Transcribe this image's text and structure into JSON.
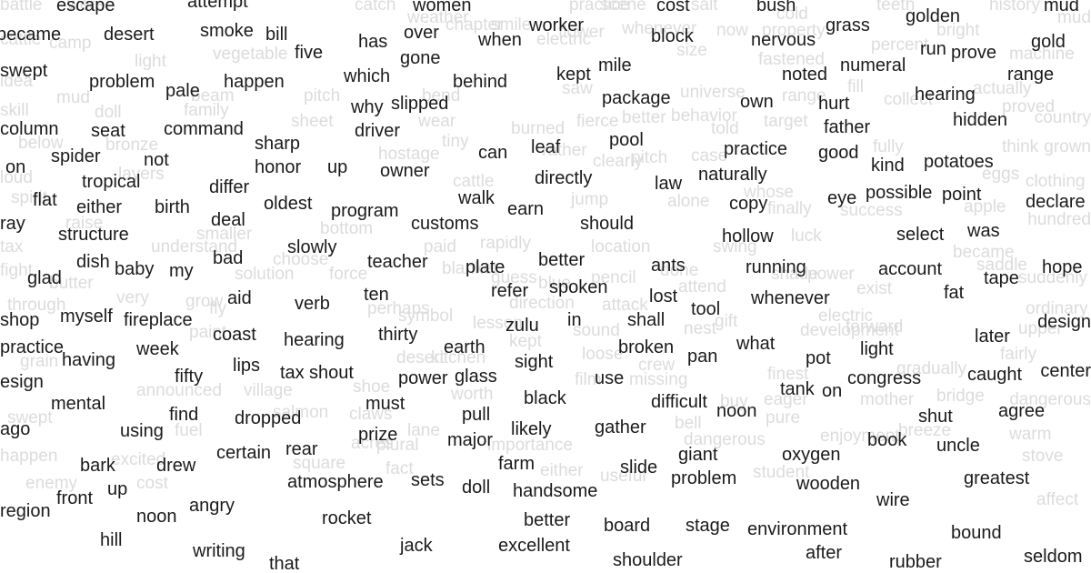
{
  "foreground_words": [
    "escape",
    "women",
    "cost",
    "bush",
    "golden",
    "mud",
    "became",
    "desert",
    "smoke",
    "bill",
    "over",
    "worker",
    "grass",
    "gold",
    "has",
    "when",
    "block",
    "nervous",
    "run",
    "prove",
    "swept",
    "five",
    "gone",
    "mile",
    "kept",
    "numeral",
    "range",
    "problem",
    "pale",
    "happen",
    "which",
    "behind",
    "noted",
    "hearing",
    "package",
    "own",
    "hurt",
    "why",
    "slipped",
    "hidden",
    "column",
    "seat",
    "command",
    "sharp",
    "driver",
    "pool",
    "father",
    "practice",
    "good",
    "spider",
    "not",
    "honor",
    "up",
    "owner",
    "can",
    "leaf",
    "kind",
    "potatoes",
    "tropical",
    "differ",
    "directly",
    "law",
    "naturally",
    "possible",
    "flat",
    "either",
    "birth",
    "oldest",
    "program",
    "walk",
    "earn",
    "copy",
    "eye",
    "point",
    "declare",
    "deal",
    "customs",
    "should",
    "structure",
    "hollow",
    "select",
    "was",
    "dish",
    "baby",
    "my",
    "slowly",
    "teacher",
    "plate",
    "better",
    "ants",
    "running",
    "account",
    "glad",
    "bad",
    "tape",
    "hope",
    "refer",
    "spoken",
    "lost",
    "tool",
    "whenever",
    "fat",
    "aid",
    "verb",
    "ten",
    "shop",
    "myself",
    "fireplace",
    "zulu",
    "in",
    "shall",
    "coast",
    "hearing",
    "thirty",
    "earth",
    "what",
    "later",
    "having",
    "week",
    "broken",
    "pan",
    "pot",
    "light",
    "lips",
    "tax",
    "shout",
    "sight",
    "caught",
    "fifty",
    "power",
    "glass",
    "use",
    "congress",
    "tank",
    "on",
    "mental",
    "must",
    "black",
    "difficult",
    "noon",
    "agree",
    "find",
    "dropped",
    "pull",
    "shut",
    "using",
    "likely",
    "gather",
    "book",
    "uncle",
    "prize",
    "major",
    "rear",
    "certain",
    "giant",
    "oxygen",
    "bark",
    "drew",
    "farm",
    "slide",
    "up",
    "sets",
    "doll",
    "problem",
    "greatest",
    "atmosphere",
    "handsome",
    "wooden",
    "front",
    "wire",
    "angry",
    "noon",
    "rocket",
    "better",
    "board",
    "stage",
    "environment",
    "bound",
    "hill",
    "writing",
    "jack",
    "excellent",
    "after",
    "that",
    "shoulder",
    "rubber",
    "seldom",
    "practice",
    "esign",
    "ago",
    "region",
    "ray",
    "on",
    "attempt",
    "center",
    "design"
  ],
  "background_words": [
    "battle",
    "were",
    "catch",
    "weather",
    "practice",
    "scene",
    "salt",
    "teeth",
    "history",
    "mud",
    "cattle",
    "camp",
    "chapter",
    "smile",
    "flower",
    "whenever",
    "now",
    "cold",
    "property",
    "percent",
    "bright",
    "electric",
    "size",
    "vegetable",
    "fastened",
    "machine",
    "light",
    "idea",
    "mud",
    "beam",
    "pitch",
    "bend",
    "saw",
    "universe",
    "range",
    "fill",
    "collect",
    "actually",
    "skill",
    "doll",
    "family",
    "sheet",
    "wear",
    "burned",
    "fierce",
    "better",
    "behavior",
    "told",
    "target",
    "proved",
    "country",
    "below",
    "bronze",
    "tiny",
    "rather",
    "clearly",
    "pitch",
    "case",
    "fully",
    "think",
    "grown",
    "loud",
    "layers",
    "hostage",
    "cattle",
    "jump",
    "alone",
    "whose",
    "finally",
    "success",
    "eggs",
    "clothing",
    "spirit",
    "apple",
    "hundred",
    "smaller",
    "bottom",
    "paid",
    "rapidly",
    "location",
    "swing",
    "luck",
    "became",
    "tax",
    "raise",
    "understand",
    "choose",
    "blanket",
    "guess",
    "blue",
    "pencil",
    "done",
    "shade",
    "power",
    "saddle",
    "suddenly",
    "fight",
    "butter",
    "very",
    "grow",
    "solution",
    "force",
    "direction",
    "attack",
    "attend",
    "electric",
    "exist",
    "ordinary",
    "through",
    "fly",
    "perhaps",
    "symbol",
    "lesson",
    "kept",
    "sound",
    "nest",
    "gift",
    "development",
    "forward",
    "upper",
    "paint",
    "desert",
    "kitchen",
    "loose",
    "crew",
    "finest",
    "gradually",
    "fairly",
    "grain",
    "announced",
    "village",
    "shoe",
    "worth",
    "film",
    "missing",
    "buy",
    "eager",
    "mother",
    "bridge",
    "dangerous",
    "swept",
    "fuel",
    "salmon",
    "claws",
    "lane",
    "bell",
    "pure",
    "enjoyment",
    "breeze",
    "warm",
    "happen",
    "excited",
    "square",
    "acres",
    "plural",
    "importance",
    "dangerous",
    "stove",
    "enemy",
    "cost",
    "fact",
    "either",
    "useful",
    "student",
    "affect"
  ],
  "colors": {
    "background": "#ffffff",
    "foreground_text": "#1a1a1a",
    "background_text": "#dcdcdc"
  }
}
